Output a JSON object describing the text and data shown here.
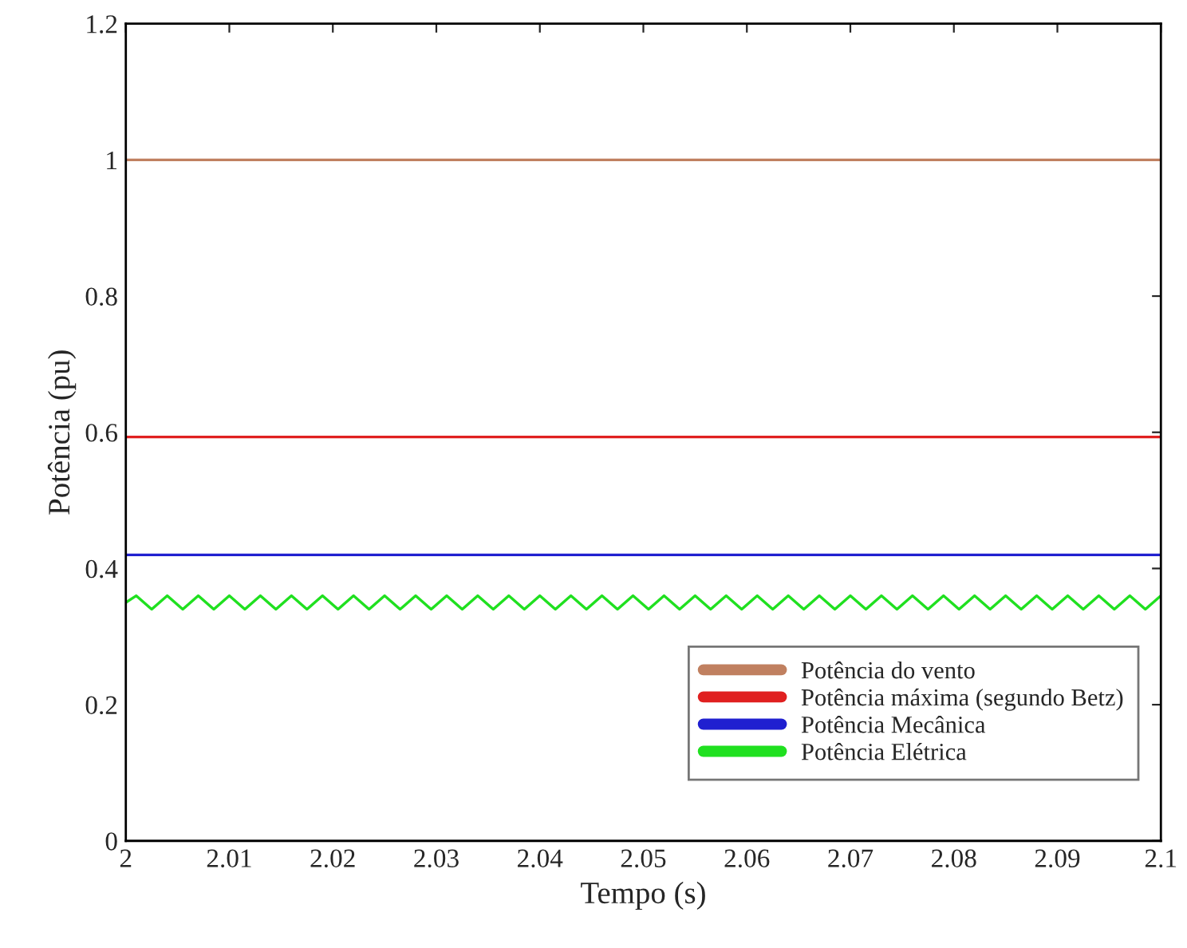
{
  "chart_data": {
    "type": "line",
    "xlabel": "Tempo (s)",
    "ylabel": "Potência (pu)",
    "xlim": [
      2,
      2.1
    ],
    "xticks": [
      2,
      2.01,
      2.02,
      2.03,
      2.04,
      2.05,
      2.06,
      2.07,
      2.08,
      2.09,
      2.1
    ],
    "ylim": [
      0,
      1.2
    ],
    "yticks": [
      0,
      0.2,
      0.4,
      0.6,
      0.8,
      1,
      1.2
    ],
    "grid": false,
    "legend": "bottom right",
    "marker": "none",
    "line_style": "solid",
    "series": [
      {
        "name": "Potência do vento",
        "color": "#c08060",
        "x": [
          2,
          2.1
        ],
        "values": [
          1,
          1
        ]
      },
      {
        "name": "Potência máxima (segundo Betz)",
        "color": "#e02020",
        "x": [
          2,
          2.1
        ],
        "values": [
          0.593,
          0.593
        ]
      },
      {
        "name": "Potência Mecânica",
        "color": "#2020d0",
        "x": [
          2,
          2.1
        ],
        "values": [
          0.42,
          0.42
        ]
      },
      {
        "name": "Potência Elétrica",
        "color": "#20e020",
        "x": [
          2.0,
          2.001,
          2.0025,
          2.004,
          2.0055,
          2.007,
          2.0085,
          2.01,
          2.0115,
          2.013,
          2.0145,
          2.016,
          2.0175,
          2.019,
          2.0205,
          2.022,
          2.0235,
          2.025,
          2.0265,
          2.028,
          2.0295,
          2.031,
          2.0325,
          2.034,
          2.0355,
          2.037,
          2.0385,
          2.04,
          2.0415,
          2.043,
          2.0445,
          2.046,
          2.0475,
          2.049,
          2.0505,
          2.052,
          2.0535,
          2.055,
          2.0565,
          2.058,
          2.0595,
          2.061,
          2.0625,
          2.064,
          2.0655,
          2.067,
          2.0685,
          2.07,
          2.0715,
          2.073,
          2.0745,
          2.076,
          2.0775,
          2.079,
          2.0805,
          2.082,
          2.0835,
          2.085,
          2.0865,
          2.088,
          2.0895,
          2.091,
          2.0925,
          2.094,
          2.0955,
          2.097,
          2.0985,
          2.1
        ],
        "values": [
          0.35,
          0.36,
          0.34,
          0.36,
          0.34,
          0.36,
          0.34,
          0.36,
          0.34,
          0.36,
          0.34,
          0.36,
          0.34,
          0.36,
          0.34,
          0.36,
          0.34,
          0.36,
          0.34,
          0.36,
          0.34,
          0.36,
          0.34,
          0.36,
          0.34,
          0.36,
          0.34,
          0.36,
          0.34,
          0.36,
          0.34,
          0.36,
          0.34,
          0.36,
          0.34,
          0.36,
          0.34,
          0.36,
          0.34,
          0.36,
          0.34,
          0.36,
          0.34,
          0.36,
          0.34,
          0.36,
          0.34,
          0.36,
          0.34,
          0.36,
          0.34,
          0.36,
          0.34,
          0.36,
          0.34,
          0.36,
          0.34,
          0.36,
          0.34,
          0.36,
          0.34,
          0.36,
          0.34,
          0.36,
          0.34,
          0.36,
          0.34,
          0.36
        ]
      }
    ]
  }
}
